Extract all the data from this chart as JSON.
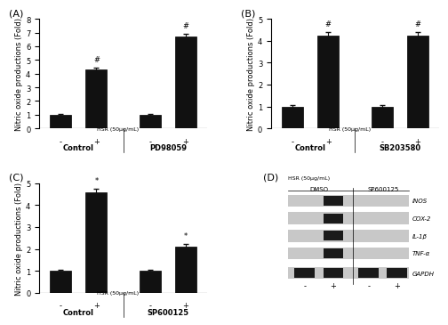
{
  "panel_A": {
    "groups": [
      "Control",
      "PD98059"
    ],
    "bars": [
      {
        "label": "-",
        "value": 1.0,
        "err": 0.05
      },
      {
        "label": "+",
        "value": 4.3,
        "err": 0.15
      },
      {
        "label": "-",
        "value": 1.0,
        "err": 0.05
      },
      {
        "label": "+",
        "value": 6.7,
        "err": 0.2
      }
    ],
    "ylim": [
      0,
      8
    ],
    "yticks": [
      0,
      1,
      2,
      3,
      4,
      5,
      6,
      7,
      8
    ],
    "ylabel": "Nitric oxide productions (Fold)",
    "hsr_label": "HSR (50μg/mL)",
    "title": "(A)",
    "starred": [
      1,
      3
    ],
    "star_symbol": "#"
  },
  "panel_B": {
    "groups": [
      "Control",
      "SB203580"
    ],
    "bars": [
      {
        "label": "-",
        "value": 1.0,
        "err": 0.05
      },
      {
        "label": "+",
        "value": 4.25,
        "err": 0.15
      },
      {
        "label": "-",
        "value": 1.0,
        "err": 0.05
      },
      {
        "label": "+",
        "value": 4.25,
        "err": 0.15
      }
    ],
    "ylim": [
      0,
      5
    ],
    "yticks": [
      0,
      1,
      2,
      3,
      4,
      5
    ],
    "ylabel": "Nitric oxide productions (Fold)",
    "hsr_label": "HSR (50μg/mL)",
    "title": "(B)",
    "starred": [
      1,
      3
    ],
    "star_symbol": "#"
  },
  "panel_C": {
    "groups": [
      "Control",
      "SP600125"
    ],
    "bars": [
      {
        "label": "-",
        "value": 1.0,
        "err": 0.05
      },
      {
        "label": "+",
        "value": 4.6,
        "err": 0.15
      },
      {
        "label": "-",
        "value": 1.0,
        "err": 0.05
      },
      {
        "label": "+",
        "value": 2.1,
        "err": 0.12
      }
    ],
    "ylim": [
      0,
      5
    ],
    "yticks": [
      0,
      1,
      2,
      3,
      4,
      5
    ],
    "ylabel": "Nitric oxide productions (Fold)",
    "hsr_label": "HSR (50μg/mL)",
    "title": "(C)",
    "starred": [
      1,
      3
    ],
    "star_symbol": "*"
  },
  "panel_D": {
    "title": "(D)",
    "header": [
      "DMSO",
      "SP600125"
    ],
    "hsr_label": "HSR (50μg/mL)",
    "lanes": [
      "-",
      "+",
      "-",
      "+"
    ],
    "bands": [
      "iNOS",
      "COX-2",
      "IL-1β",
      "TNF-α",
      "GAPDH"
    ],
    "band_presence": [
      [
        false,
        true,
        false,
        false
      ],
      [
        false,
        true,
        false,
        false
      ],
      [
        false,
        true,
        false,
        false
      ],
      [
        false,
        true,
        false,
        false
      ],
      [
        true,
        true,
        true,
        true
      ]
    ],
    "band_color": "#1a1a1a",
    "bg_color": "#c8c8c8"
  },
  "bar_color": "#111111",
  "bar_width": 0.6,
  "error_color": "#111111",
  "font_family": "Arial",
  "tick_fontsize": 6,
  "label_fontsize": 6,
  "title_fontsize": 8
}
